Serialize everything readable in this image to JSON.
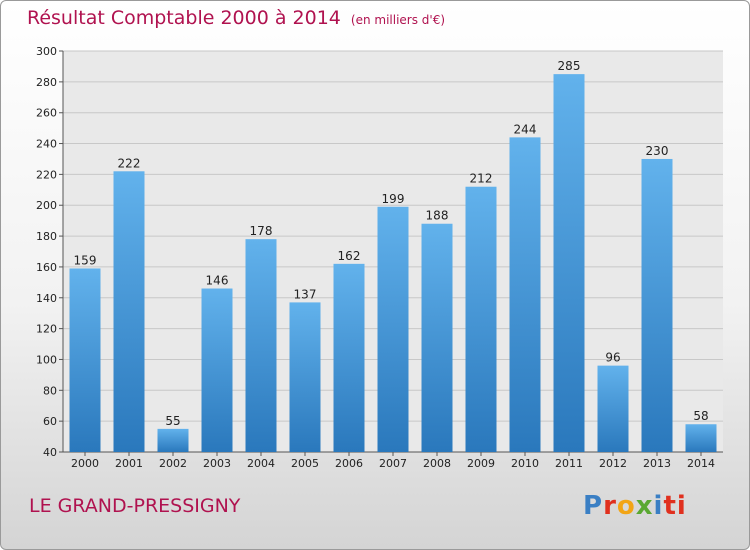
{
  "header": {
    "title": "Résultat Comptable 2000 à 2014",
    "unit": "(en milliers d'€)"
  },
  "footer": {
    "town": "LE GRAND-PRESSIGNY",
    "logo_letters": [
      "P",
      "r",
      "o",
      "x",
      "i",
      "ti"
    ]
  },
  "colors": {
    "title": "#b0124f",
    "bar_light": "#62b2ec",
    "bar_dark": "#2a78bc"
  },
  "chart_data": {
    "type": "bar",
    "categories": [
      "2000",
      "2001",
      "2002",
      "2003",
      "2004",
      "2005",
      "2006",
      "2007",
      "2008",
      "2009",
      "2010",
      "2011",
      "2012",
      "2013",
      "2014"
    ],
    "values": [
      159,
      222,
      55,
      146,
      178,
      137,
      162,
      199,
      188,
      212,
      244,
      285,
      96,
      230,
      58
    ],
    "ylim": [
      40,
      300
    ],
    "yticks": [
      40,
      60,
      80,
      100,
      120,
      140,
      160,
      180,
      200,
      220,
      240,
      260,
      280,
      300
    ],
    "grid": true,
    "title": "Résultat Comptable 2000 à 2014",
    "xlabel": "",
    "ylabel": ""
  }
}
